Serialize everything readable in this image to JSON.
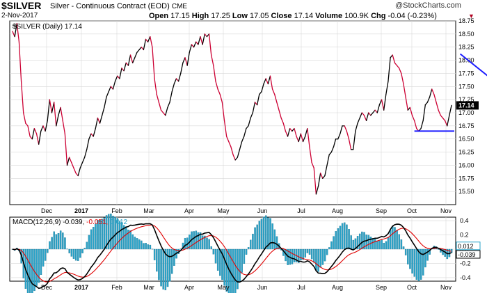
{
  "header": {
    "symbol": "$SILVER",
    "contract": "Silver - Continuous Contract (EOD)",
    "exchange": "CME",
    "date": "2-Nov-2017",
    "open_label": "Open",
    "open": "17.15",
    "high_label": "High",
    "high": "17.25",
    "low_label": "Low",
    "low": "17.05",
    "close_label": "Close",
    "close": "17.14",
    "volume_label": "Volume",
    "volume": "100.9K",
    "chg_label": "Chg",
    "chg": "-0.04 (-0.23%)",
    "arrow": "▼",
    "brand": "@StockCharts.com"
  },
  "colors": {
    "up": "#000000",
    "down": "#cc0033",
    "trendline": "#1a1aff",
    "macd_line": "#000000",
    "signal_line": "#e00000",
    "histogram": "#2aa3c8",
    "histogram_edge": "#1f6f8c",
    "grid": "#d8d8d8"
  },
  "chart_data": [
    {
      "type": "line",
      "legend": "$SILVER (Daily) 17.14",
      "ylim": [
        15.25,
        18.75
      ],
      "y_ticks": [
        "18.75",
        "18.50",
        "18.25",
        "18.00",
        "17.75",
        "17.50",
        "17.25",
        "17.00",
        "16.75",
        "16.50",
        "16.25",
        "16.00",
        "15.75",
        "15.50"
      ],
      "last_value_label": "17.14",
      "x_labels": [
        "Dec",
        "2017",
        "Feb",
        "Mar",
        "Apr",
        "May",
        "Jun",
        "Jul",
        "Aug",
        "Sep",
        "Oct",
        "Nov"
      ],
      "grid": true,
      "values": [
        18.55,
        18.45,
        18.7,
        18.35,
        17.6,
        17.0,
        16.8,
        16.75,
        16.55,
        16.5,
        16.7,
        16.6,
        16.4,
        16.65,
        16.75,
        16.65,
        16.85,
        17.25,
        17.0,
        17.2,
        16.75,
        16.95,
        17.1,
        16.85,
        16.6,
        16.0,
        16.15,
        16.05,
        15.95,
        15.85,
        15.8,
        15.95,
        16.05,
        16.15,
        16.3,
        16.5,
        16.6,
        16.55,
        16.7,
        16.9,
        16.8,
        16.95,
        17.1,
        17.3,
        17.4,
        17.5,
        17.45,
        17.6,
        17.7,
        17.65,
        17.85,
        17.8,
        17.95,
        17.9,
        18.1,
        17.95,
        18.05,
        18.15,
        18.2,
        18.25,
        18.2,
        18.4,
        18.35,
        18.45,
        18.25,
        17.65,
        17.35,
        17.2,
        17.05,
        17.0,
        16.95,
        17.1,
        17.2,
        17.4,
        17.55,
        17.65,
        17.6,
        17.75,
        17.95,
        18.05,
        17.9,
        18.15,
        18.3,
        18.25,
        18.35,
        18.3,
        18.45,
        18.3,
        18.5,
        18.45,
        18.5,
        18.1,
        17.9,
        17.6,
        17.45,
        17.35,
        17.2,
        16.85,
        16.55,
        16.45,
        16.35,
        16.2,
        16.1,
        16.15,
        16.3,
        16.45,
        16.55,
        16.7,
        16.75,
        16.9,
        17.0,
        17.2,
        17.15,
        17.35,
        17.4,
        17.55,
        17.65,
        17.55,
        17.7,
        17.45,
        17.35,
        17.2,
        17.05,
        16.9,
        16.8,
        16.65,
        16.55,
        16.7,
        16.65,
        16.7,
        16.55,
        16.45,
        16.6,
        16.45,
        16.55,
        16.7,
        16.35,
        16.05,
        15.95,
        15.45,
        15.6,
        15.85,
        15.75,
        15.8,
        16.0,
        16.2,
        16.25,
        16.35,
        16.5,
        16.5,
        16.6,
        16.75,
        16.75,
        16.65,
        16.5,
        16.3,
        16.3,
        16.65,
        16.8,
        16.9,
        17.0,
        16.95,
        16.85,
        17.0,
        16.95,
        17.0,
        17.05,
        17.0,
        17.15,
        17.25,
        17.05,
        17.35,
        17.6,
        18.05,
        18.1,
        17.95,
        17.9,
        17.85,
        17.75,
        17.55,
        17.3,
        17.05,
        17.1,
        16.95,
        16.85,
        16.7,
        16.65,
        16.7,
        16.85,
        17.15,
        17.2,
        17.3,
        17.45,
        17.35,
        17.2,
        17.05,
        16.95,
        16.9,
        16.85,
        16.75,
        16.95,
        17.14
      ],
      "resistance_line": {
        "from": [
          205,
          18.12
        ],
        "to": [
          237,
          16.97
        ]
      },
      "support_line": {
        "from": [
          184,
          16.65
        ],
        "to": [
          232,
          16.65
        ]
      }
    },
    {
      "type": "line",
      "legend_prefix": "MACD(12,26,9)",
      "legend_macd": "-0.039,",
      "legend_signal": "-0.051,",
      "legend_hist": "0.012",
      "ylim": [
        -0.45,
        0.45
      ],
      "y_ticks": [
        "0.4",
        "0.2",
        "0.0",
        "-0.2",
        "-0.4"
      ],
      "value_labels": [
        "0.012",
        "-0.039"
      ],
      "x_labels": [
        "Dec",
        "2017",
        "Feb",
        "Mar",
        "Apr",
        "May",
        "Jun",
        "Jul",
        "Aug",
        "Sep",
        "Oct",
        "Nov"
      ],
      "grid": true
    }
  ]
}
